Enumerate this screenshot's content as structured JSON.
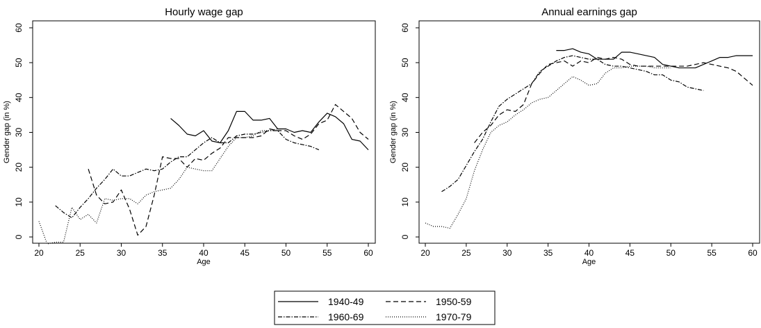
{
  "legend": {
    "placement": "bottom-center",
    "entries": [
      "1940-49",
      "1950-59",
      "1960-69",
      "1970-79"
    ]
  },
  "styles": {
    "1940-49": {
      "dash": "solid",
      "color": "#000000"
    },
    "1950-59": {
      "dash": "dashed",
      "color": "#000000"
    },
    "1960-69": {
      "dash": "dash-dot",
      "color": "#000000"
    },
    "1970-79": {
      "dash": "dotted",
      "color": "#000000"
    }
  },
  "chart_data": [
    {
      "type": "line",
      "title": "Hourly wage gap",
      "xlabel": "Age",
      "ylabel": "Gender gap (in %)",
      "xlim": [
        20,
        60
      ],
      "ylim": [
        -2.5,
        62
      ],
      "xticks": [
        20,
        25,
        30,
        35,
        40,
        45,
        50,
        55,
        60
      ],
      "yticks": [
        0,
        10,
        20,
        30,
        40,
        50,
        60
      ],
      "grid": false,
      "series": [
        {
          "name": "1940-49",
          "x": [
            36,
            37,
            38,
            39,
            40,
            41,
            42,
            43,
            44,
            45,
            46,
            47,
            48,
            49,
            50,
            51,
            52,
            53,
            54,
            55,
            56,
            57,
            58,
            59,
            60
          ],
          "y": [
            34,
            32,
            29.5,
            29,
            30.5,
            27.5,
            27,
            30.5,
            36,
            36,
            33.5,
            33.5,
            34,
            31,
            31,
            30,
            30.5,
            30,
            33,
            35.5,
            34.5,
            32.5,
            28,
            27.5,
            25
          ]
        },
        {
          "name": "1950-59",
          "x": [
            26,
            27,
            28,
            29,
            30,
            31,
            32,
            33,
            34,
            35,
            36,
            37,
            38,
            39,
            40,
            41,
            42,
            43,
            44,
            45,
            46,
            47,
            48,
            49,
            50,
            51,
            52,
            53,
            54,
            55,
            56,
            57,
            58,
            59,
            60
          ],
          "y": [
            19.5,
            12,
            9.5,
            10,
            13.5,
            8,
            0.5,
            3,
            12,
            23,
            22.5,
            22.5,
            20,
            22.5,
            22,
            24,
            25.5,
            28.5,
            28.5,
            28.5,
            28.5,
            29,
            31,
            30.5,
            30.5,
            29,
            28,
            29.5,
            32.5,
            33.5,
            38,
            36,
            34,
            30,
            28
          ]
        },
        {
          "name": "1960-69",
          "x": [
            22,
            23,
            24,
            25,
            26,
            27,
            28,
            29,
            30,
            31,
            32,
            33,
            34,
            35,
            36,
            37,
            38,
            39,
            40,
            41,
            42,
            43,
            44,
            45,
            46,
            47,
            48,
            49,
            50,
            51,
            52,
            53,
            54
          ],
          "y": [
            9,
            7,
            5.5,
            8.5,
            11,
            14,
            16.5,
            19.5,
            17.5,
            17.5,
            18.5,
            19.5,
            19,
            19.5,
            21.5,
            23,
            23,
            25,
            27,
            28.5,
            27,
            27,
            29,
            29.5,
            29.5,
            30,
            30.5,
            30.5,
            28,
            27,
            26.5,
            26,
            25
          ]
        },
        {
          "name": "1970-79",
          "x": [
            20,
            21,
            22,
            23,
            24,
            25,
            26,
            27,
            28,
            29,
            30,
            31,
            32,
            33,
            34,
            35,
            36,
            37,
            38,
            39,
            40,
            41,
            42,
            43,
            44,
            45,
            46,
            47,
            48,
            49,
            50
          ],
          "y": [
            4.5,
            -2,
            -1.5,
            -1.5,
            8.5,
            5,
            6.5,
            4,
            11,
            10.5,
            11,
            11,
            9.5,
            12,
            13,
            13.5,
            14,
            16.5,
            20,
            19.5,
            19,
            19,
            22.5,
            26,
            28.5,
            28.5,
            29,
            30.5,
            30.5,
            31,
            31
          ]
        }
      ]
    },
    {
      "type": "line",
      "title": "Annual earnings gap",
      "xlabel": "Age",
      "ylabel": "Gender gap (in %)",
      "xlim": [
        20,
        60
      ],
      "ylim": [
        -2.5,
        62
      ],
      "xticks": [
        20,
        25,
        30,
        35,
        40,
        45,
        50,
        55,
        60
      ],
      "yticks": [
        0,
        10,
        20,
        30,
        40,
        50,
        60
      ],
      "grid": false,
      "series": [
        {
          "name": "1940-49",
          "x": [
            36,
            37,
            38,
            39,
            40,
            41,
            42,
            43,
            44,
            45,
            46,
            47,
            48,
            49,
            50,
            51,
            52,
            53,
            54,
            55,
            56,
            57,
            58,
            59,
            60
          ],
          "y": [
            53.5,
            53.5,
            54,
            53,
            52.5,
            51,
            51,
            51,
            53,
            53,
            52.5,
            52,
            51.5,
            49.5,
            49,
            48.5,
            48.5,
            48.5,
            49.5,
            50.5,
            51.5,
            51.5,
            52,
            52,
            52
          ]
        },
        {
          "name": "1950-59",
          "x": [
            26,
            27,
            28,
            29,
            30,
            31,
            32,
            33,
            34,
            35,
            36,
            37,
            38,
            39,
            40,
            41,
            42,
            43,
            44,
            45,
            46,
            47,
            48,
            49,
            50,
            51,
            52,
            53,
            54,
            55,
            56,
            57,
            58,
            59,
            60
          ],
          "y": [
            27,
            30,
            32,
            35,
            36.5,
            36,
            38,
            44,
            47,
            49.5,
            50,
            50.5,
            49,
            50.5,
            50,
            51.5,
            51,
            51.5,
            51,
            49.5,
            49,
            49,
            49,
            49,
            49,
            49,
            49,
            49.5,
            50,
            49.5,
            49,
            48.5,
            47.5,
            45.5,
            43.5
          ]
        },
        {
          "name": "1960-69",
          "x": [
            22,
            23,
            24,
            25,
            26,
            27,
            28,
            29,
            30,
            31,
            32,
            33,
            34,
            35,
            36,
            37,
            38,
            39,
            40,
            41,
            42,
            43,
            44,
            45,
            46,
            47,
            48,
            49,
            50,
            51,
            52,
            53,
            54
          ],
          "y": [
            13,
            14.5,
            16.5,
            20.5,
            24.5,
            28,
            33,
            37.5,
            39.5,
            41,
            42.5,
            44,
            47.5,
            49,
            50.5,
            51.5,
            52,
            51.5,
            51,
            51,
            49.5,
            49,
            49,
            48.5,
            48,
            47.5,
            46.5,
            46.5,
            45,
            44.5,
            43,
            42.5,
            42
          ]
        },
        {
          "name": "1970-79",
          "x": [
            20,
            21,
            22,
            23,
            24,
            25,
            26,
            27,
            28,
            29,
            30,
            31,
            32,
            33,
            34,
            35,
            36,
            37,
            38,
            39,
            40,
            41,
            42,
            43,
            44,
            45,
            46,
            47,
            48,
            49,
            50
          ],
          "y": [
            4,
            3,
            3,
            2.5,
            6.5,
            11,
            19,
            25,
            30,
            32,
            33,
            35,
            36.5,
            38.5,
            39.5,
            40,
            42,
            44,
            46,
            45,
            43.5,
            44,
            47,
            48.5,
            48.5,
            49,
            49,
            49,
            48.5,
            48.5,
            48.5
          ]
        }
      ]
    }
  ]
}
